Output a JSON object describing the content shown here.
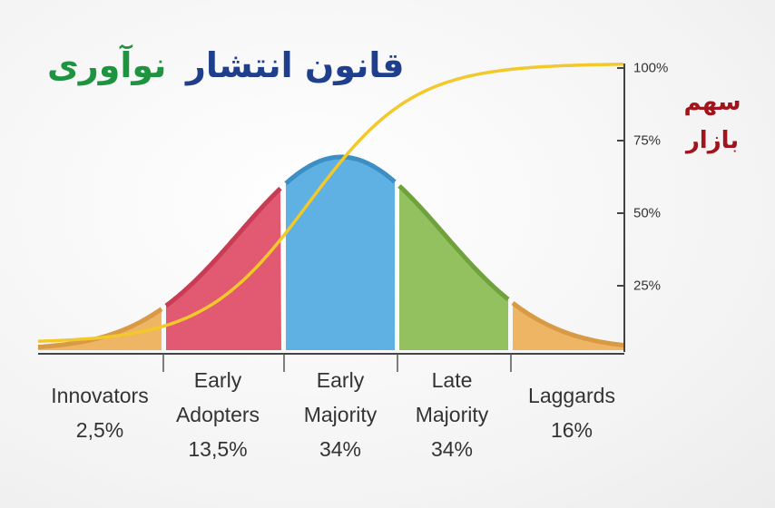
{
  "title": {
    "part_1": "قانون انتشار",
    "part_2": "نوآوری"
  },
  "axis_label": {
    "line_1": "سهم",
    "line_2": "بازار"
  },
  "ticks": [
    "100%",
    "75%",
    "50%",
    "25%"
  ],
  "segments": [
    {
      "name": "Innovators",
      "share": "2,5%"
    },
    {
      "name": "Early Adopters",
      "share": "13,5%"
    },
    {
      "name": "Early Majority",
      "share": "34%"
    },
    {
      "name": "Late Majority",
      "share": "34%"
    },
    {
      "name": "Laggards",
      "share": "16%"
    }
  ]
}
